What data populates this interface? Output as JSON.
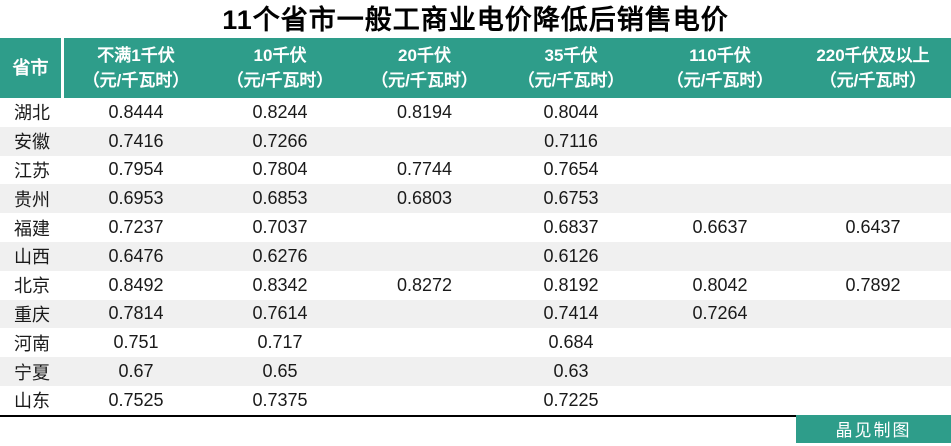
{
  "title": "11个省市一般工商业电价降低后销售电价",
  "chart_data": {
    "type": "table",
    "title": "11个省市一般工商业电价降低后销售电价",
    "unit": "元/千瓦时",
    "columns": [
      {
        "label": "省市",
        "sub": ""
      },
      {
        "label": "不满1千伏",
        "sub": "（元/千瓦时）"
      },
      {
        "label": "10千伏",
        "sub": "（元/千瓦时）"
      },
      {
        "label": "20千伏",
        "sub": "（元/千瓦时）"
      },
      {
        "label": "35千伏",
        "sub": "（元/千瓦时）"
      },
      {
        "label": "110千伏",
        "sub": "（元/千瓦时）"
      },
      {
        "label": "220千伏及以上",
        "sub": "（元/千瓦时）"
      }
    ],
    "rows": [
      {
        "province": "湖北",
        "values": [
          "0.8444",
          "0.8244",
          "0.8194",
          "0.8044",
          "",
          ""
        ]
      },
      {
        "province": "安徽",
        "values": [
          "0.7416",
          "0.7266",
          "",
          "0.7116",
          "",
          ""
        ]
      },
      {
        "province": "江苏",
        "values": [
          "0.7954",
          "0.7804",
          "0.7744",
          "0.7654",
          "",
          ""
        ]
      },
      {
        "province": "贵州",
        "values": [
          "0.6953",
          "0.6853",
          "0.6803",
          "0.6753",
          "",
          ""
        ]
      },
      {
        "province": "福建",
        "values": [
          "0.7237",
          "0.7037",
          "",
          "0.6837",
          "0.6637",
          "0.6437"
        ]
      },
      {
        "province": "山西",
        "values": [
          "0.6476",
          "0.6276",
          "",
          "0.6126",
          "",
          ""
        ]
      },
      {
        "province": "北京",
        "values": [
          "0.8492",
          "0.8342",
          "0.8272",
          "0.8192",
          "0.8042",
          "0.7892"
        ]
      },
      {
        "province": "重庆",
        "values": [
          "0.7814",
          "0.7614",
          "",
          "0.7414",
          "0.7264",
          ""
        ]
      },
      {
        "province": "河南",
        "values": [
          "0.751",
          "0.717",
          "",
          "0.684",
          "",
          ""
        ]
      },
      {
        "province": "宁夏",
        "values": [
          "0.67",
          "0.65",
          "",
          "0.63",
          "",
          ""
        ]
      },
      {
        "province": "山东",
        "values": [
          "0.7525",
          "0.7375",
          "",
          "0.7225",
          "",
          ""
        ]
      }
    ],
    "layout": {
      "header_background": "teal",
      "alternating_rows": true,
      "legend": "none"
    }
  },
  "footer": {
    "credit": "晶见制图"
  },
  "colors": {
    "accent_teal": "#2e9d8a",
    "header_text": "#ffffff",
    "row_alt_gray": "#f0f0f0",
    "body_text": "#1a1a1a",
    "bottom_rule": "#000000"
  }
}
